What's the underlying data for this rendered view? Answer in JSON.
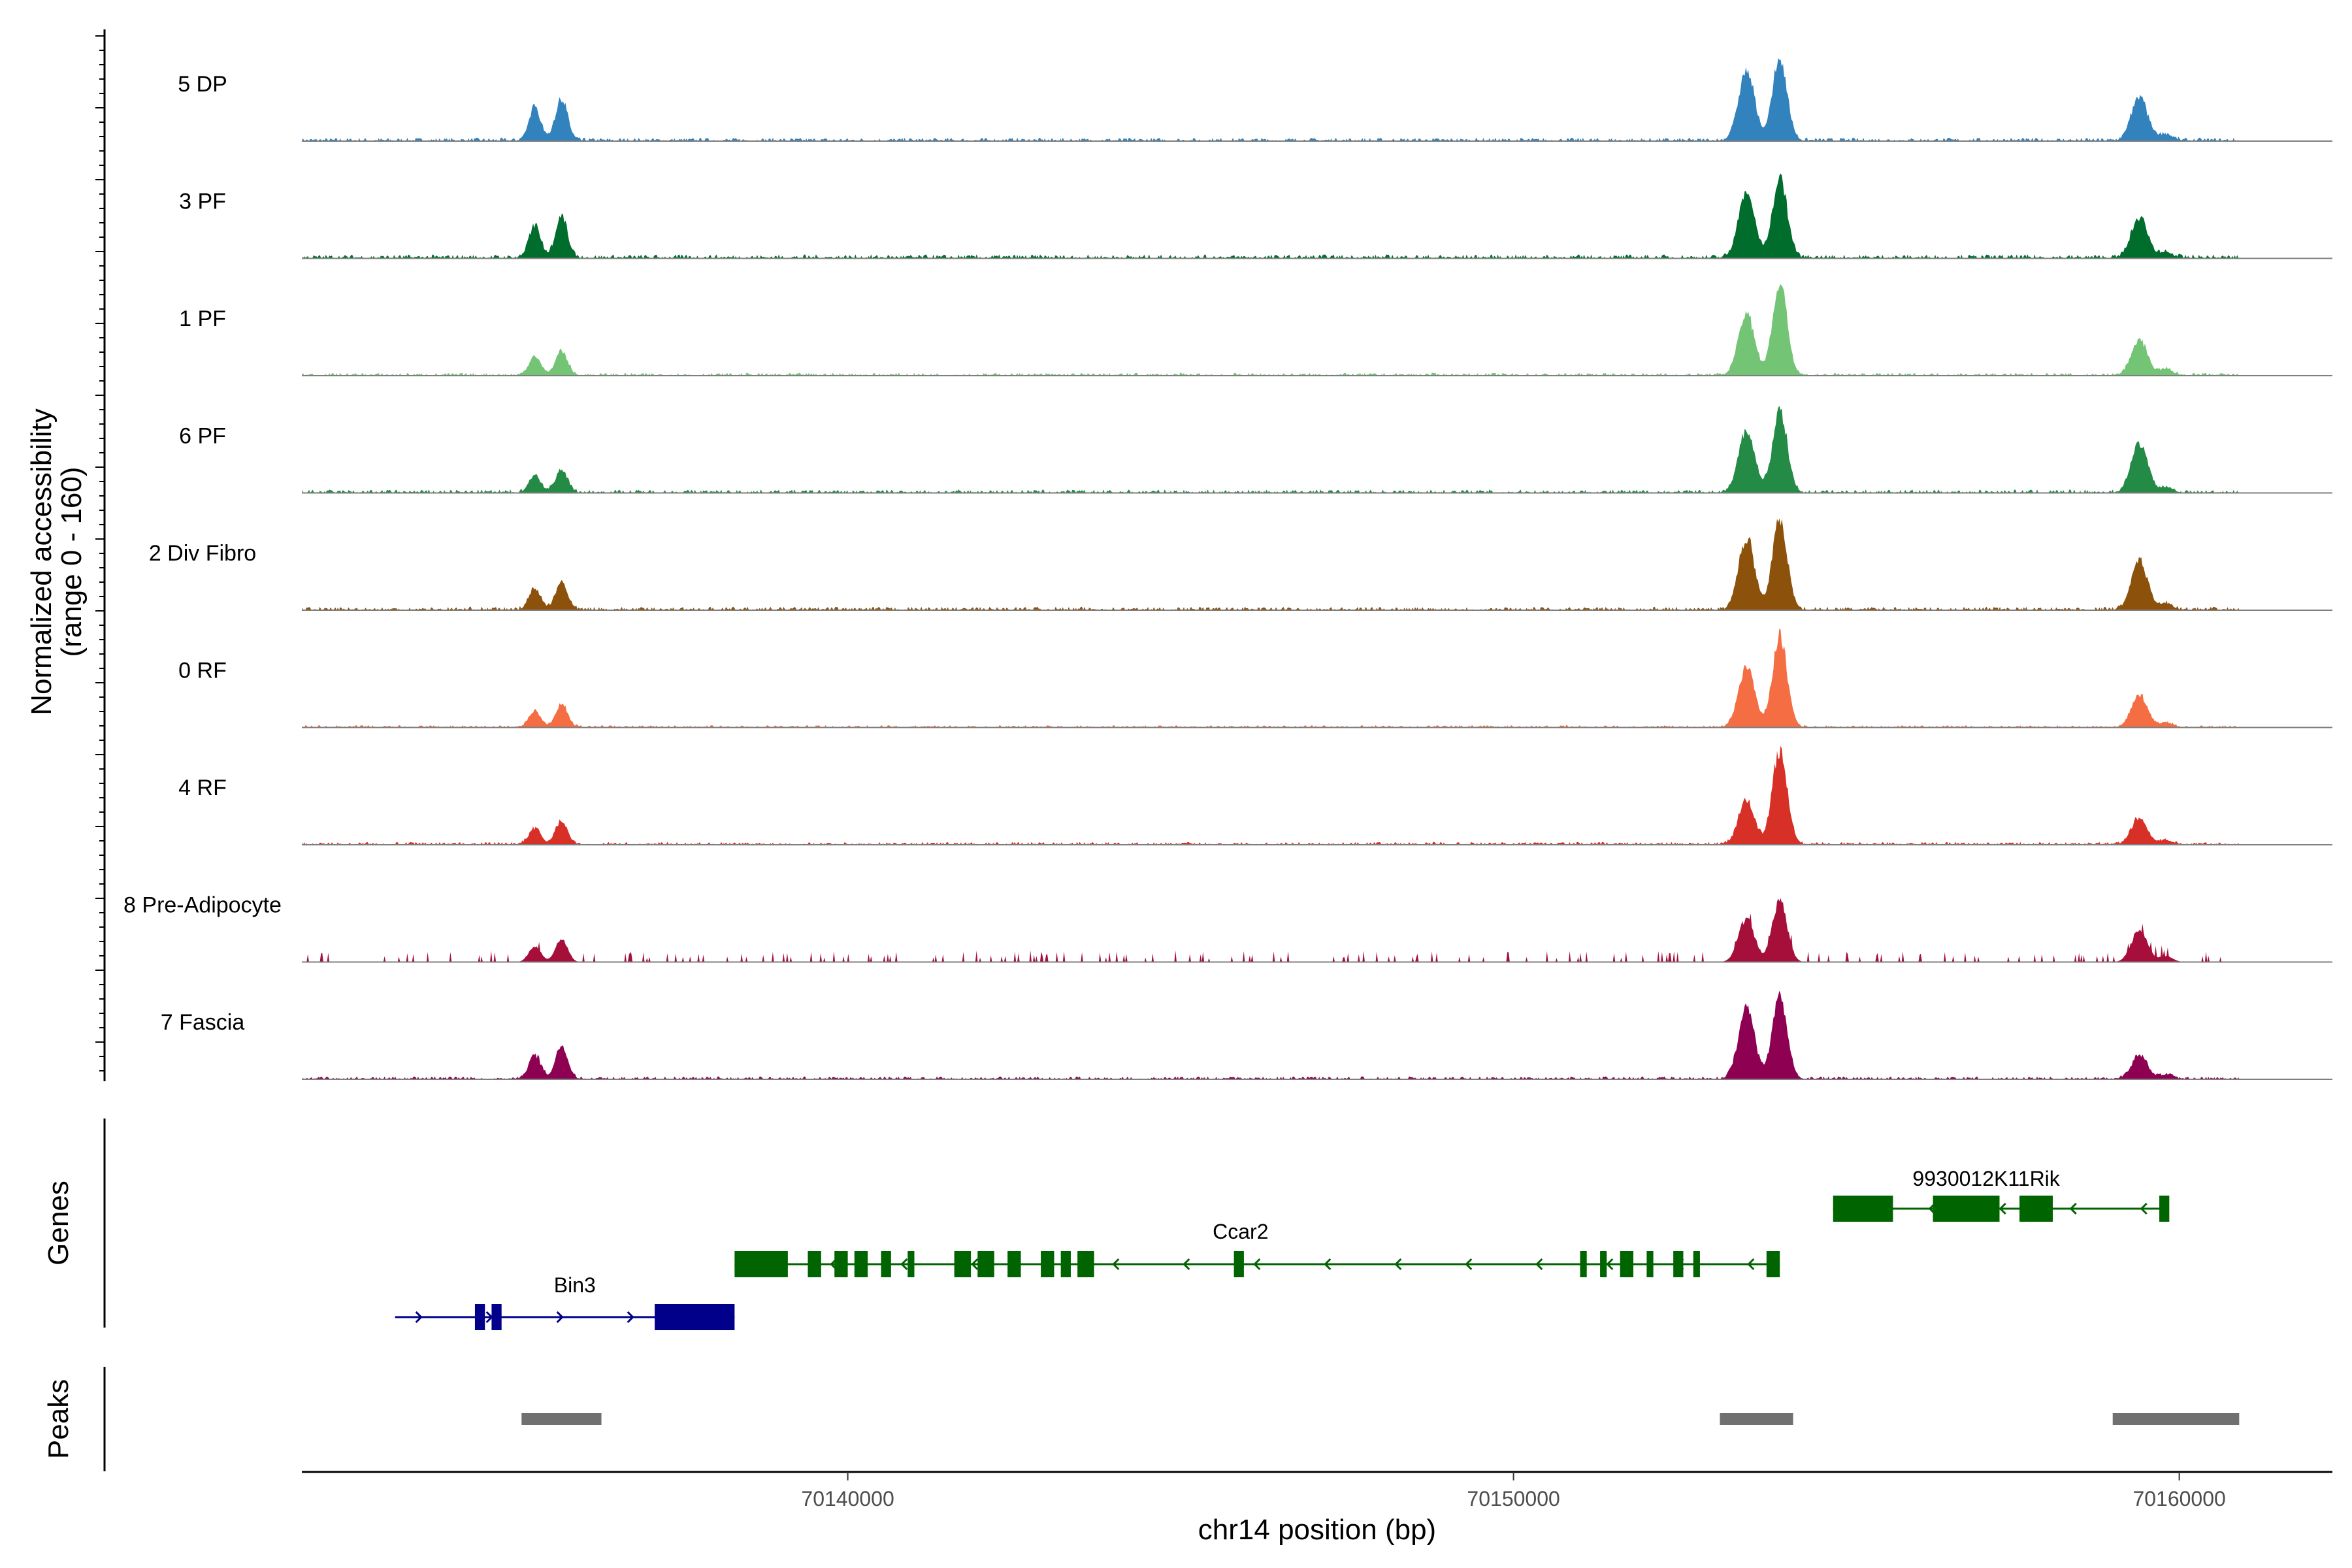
{
  "chart_data": {
    "type": "area",
    "title": "",
    "y_axis": {
      "label_line1": "Normalized accessibility",
      "label_line2": "(range 0 - 160)",
      "ylim": [
        0,
        160
      ]
    },
    "x_axis": {
      "label": "chr14 position (bp)",
      "xlim": [
        70131800,
        70162300
      ],
      "ticks": [
        70140000,
        70150000,
        70160000
      ],
      "tick_labels": [
        "70140000",
        "70150000",
        "70160000"
      ]
    },
    "coverage_peaks": [
      {
        "pos": 70135300,
        "h": 0.55,
        "w": 90
      },
      {
        "pos": 70135700,
        "h": 0.62,
        "w": 90
      },
      {
        "pos": 70153500,
        "h": 0.75,
        "w": 120
      },
      {
        "pos": 70154000,
        "h": 0.85,
        "w": 110
      },
      {
        "pos": 70159400,
        "h": 0.6,
        "w": 120
      },
      {
        "pos": 70159800,
        "h": 0.22,
        "w": 100
      }
    ],
    "series": [
      {
        "name": "5 DP",
        "color": "#3182bd",
        "scale": [
          0.62,
          0.7,
          0.95,
          0.98,
          0.75,
          0.3
        ],
        "noise": 0.06
      },
      {
        "name": "3 PF",
        "color": "#006d2c",
        "scale": [
          0.6,
          0.7,
          0.9,
          0.98,
          0.7,
          0.25
        ],
        "noise": 0.07
      },
      {
        "name": "1 PF",
        "color": "#74c476",
        "scale": [
          0.35,
          0.4,
          0.85,
          1.12,
          0.6,
          0.28
        ],
        "noise": 0.05
      },
      {
        "name": "6 PF",
        "color": "#238b45",
        "scale": [
          0.32,
          0.38,
          0.85,
          0.98,
          0.85,
          0.25
        ],
        "noise": 0.06
      },
      {
        "name": "2 Div Fibro",
        "color": "#8c510a",
        "scale": [
          0.4,
          0.45,
          1.0,
          1.1,
          0.85,
          0.3
        ],
        "noise": 0.06
      },
      {
        "name": "0 RF",
        "color": "#f46d43",
        "scale": [
          0.3,
          0.38,
          0.85,
          1.1,
          0.55,
          0.2
        ],
        "noise": 0.04
      },
      {
        "name": "4 RF",
        "color": "#d73027",
        "scale": [
          0.3,
          0.38,
          0.6,
          1.15,
          0.45,
          0.2
        ],
        "noise": 0.05
      },
      {
        "name": "8 Pre-Adipocyte",
        "color": "#a50f3a",
        "scale": [
          0.3,
          0.4,
          0.6,
          0.75,
          0.55,
          0.28
        ],
        "noise": 0.08,
        "sparse": true
      },
      {
        "name": "7 Fascia",
        "color": "#8e0152",
        "scale": [
          0.45,
          0.55,
          1.0,
          1.0,
          0.4,
          0.2
        ],
        "noise": 0.05
      }
    ],
    "genes": [
      {
        "name": "Bin3",
        "strand": "+",
        "color": "#00008b",
        "start": 70133200,
        "end": 70138300,
        "row": 2,
        "exons": [
          [
            70134400,
            70134550,
            20
          ],
          [
            70134650,
            70134800,
            20
          ],
          [
            70137100,
            70138300,
            20
          ]
        ]
      },
      {
        "name": "Ccar2",
        "strand": "-",
        "color": "#006400",
        "start": 70138300,
        "end": 70154000,
        "row": 1,
        "exons": [
          [
            70138300,
            70139100,
            20
          ],
          [
            70139400,
            70139600,
            20
          ],
          [
            70139800,
            70140000,
            20
          ],
          [
            70140100,
            70140300,
            20
          ],
          [
            70140500,
            70140650,
            20
          ],
          [
            70140900,
            70141000,
            20
          ],
          [
            70141600,
            70141850,
            20
          ],
          [
            70141950,
            70142200,
            20
          ],
          [
            70142400,
            70142600,
            20
          ],
          [
            70142900,
            70143100,
            20
          ],
          [
            70143200,
            70143350,
            20
          ],
          [
            70143450,
            70143700,
            20
          ],
          [
            70145800,
            70145950,
            20
          ],
          [
            70151000,
            70151100,
            20
          ],
          [
            70151300,
            70151400,
            20
          ],
          [
            70151600,
            70151800,
            20
          ],
          [
            70152000,
            70152100,
            20
          ],
          [
            70152400,
            70152550,
            20
          ],
          [
            70152700,
            70152800,
            20
          ],
          [
            70153800,
            70154000,
            20
          ]
        ]
      },
      {
        "name": "9930012K11Rik",
        "strand": "-",
        "color": "#006400",
        "start": 70154800,
        "end": 70159800,
        "row": 0,
        "exons": [
          [
            70154800,
            70155700,
            20
          ],
          [
            70156300,
            70157300,
            20
          ],
          [
            70157600,
            70158100,
            20
          ],
          [
            70159700,
            70159850,
            20
          ]
        ]
      }
    ],
    "genes_label": "Genes",
    "peaks_label": "Peaks",
    "peak_color": "#707070",
    "peaks": [
      [
        70135100,
        70136300
      ],
      [
        70153100,
        70154200
      ],
      [
        70159000,
        70160900
      ]
    ]
  }
}
